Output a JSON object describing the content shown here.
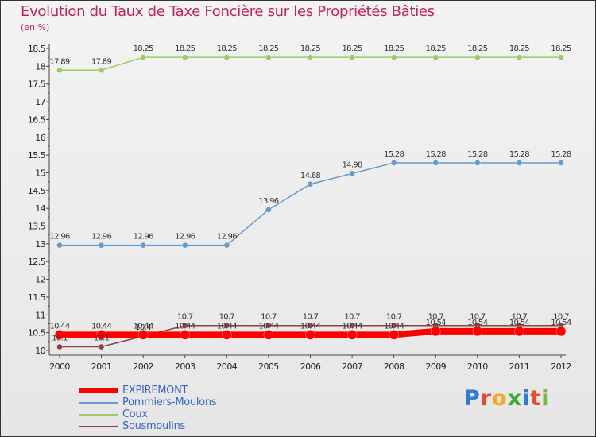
{
  "header": {
    "title": "Evolution du Taux de Taxe Foncière sur les Propriétés Bâties",
    "unit": "(en %)"
  },
  "logo": {
    "text": "Proxiti",
    "letters": [
      "P",
      "r",
      "o",
      "x",
      "i",
      "t",
      "i"
    ],
    "colors": [
      "#2e7bd6",
      "#e84a2a",
      "#f5a623",
      "#3aa935",
      "#2e7bd6",
      "#e84a2a",
      "#7bb641"
    ]
  },
  "colors": {
    "EXPIREMONT": "#ff0000",
    "Pommiers-Moulons": "#6699cc",
    "Coux": "#99cc66",
    "Sousmoulins": "#884444"
  },
  "chart_data": {
    "type": "line",
    "title": "Evolution du Taux de Taxe Foncière sur les Propriétés Bâties",
    "ylabel": "(en %)",
    "xlabel": "",
    "ylim": [
      10,
      18.5
    ],
    "yticks": [
      "10",
      "10.5",
      "11",
      "11.5",
      "12",
      "12.5",
      "13",
      "13.5",
      "14",
      "14.5",
      "15",
      "15.5",
      "16",
      "16.5",
      "17",
      "17.5",
      "18",
      "18.5"
    ],
    "x": [
      "2000",
      "2001",
      "2002",
      "2003",
      "2004",
      "2005",
      "2006",
      "2007",
      "2008",
      "2009",
      "2010",
      "2011",
      "2012"
    ],
    "grid": false,
    "legend_position": "bottom-left",
    "series": [
      {
        "name": "EXPIREMONT",
        "values": [
          10.44,
          10.44,
          10.44,
          10.44,
          10.44,
          10.44,
          10.44,
          10.44,
          10.44,
          10.54,
          10.54,
          10.54,
          10.54
        ],
        "labels": [
          "10.44",
          "10.44",
          "10.44",
          "10.44",
          "10.44",
          "10.44",
          "10.44",
          "10.44",
          "10.44",
          "10.54",
          "10.54",
          "10.54",
          "10.54"
        ]
      },
      {
        "name": "Pommiers-Moulons",
        "values": [
          12.96,
          12.96,
          12.96,
          12.96,
          12.96,
          13.96,
          14.68,
          14.98,
          15.28,
          15.28,
          15.28,
          15.28,
          15.28
        ],
        "labels": [
          "12.96",
          "12.96",
          "12.96",
          "12.96",
          "12.96",
          "13.96",
          "14.68",
          "14.98",
          "15.28",
          "15.28",
          "15.28",
          "15.28",
          "15.28"
        ]
      },
      {
        "name": "Coux",
        "values": [
          17.89,
          17.89,
          18.25,
          18.25,
          18.25,
          18.25,
          18.25,
          18.25,
          18.25,
          18.25,
          18.25,
          18.25,
          18.25
        ],
        "labels": [
          "17.89",
          "17.89",
          "18.25",
          "18.25",
          "18.25",
          "18.25",
          "18.25",
          "18.25",
          "18.25",
          "18.25",
          "18.25",
          "18.25",
          "18.25"
        ]
      },
      {
        "name": "Sousmoulins",
        "values": [
          10.1,
          10.1,
          10.4,
          10.7,
          10.7,
          10.7,
          10.7,
          10.7,
          10.7,
          10.7,
          10.7,
          10.7,
          10.7
        ],
        "labels": [
          "10.1",
          "10.1",
          "10.4",
          "10.7",
          "10.7",
          "10.7",
          "10.7",
          "10.7",
          "10.7",
          "10.7",
          "10.7",
          "10.7",
          "10.7"
        ]
      }
    ]
  }
}
